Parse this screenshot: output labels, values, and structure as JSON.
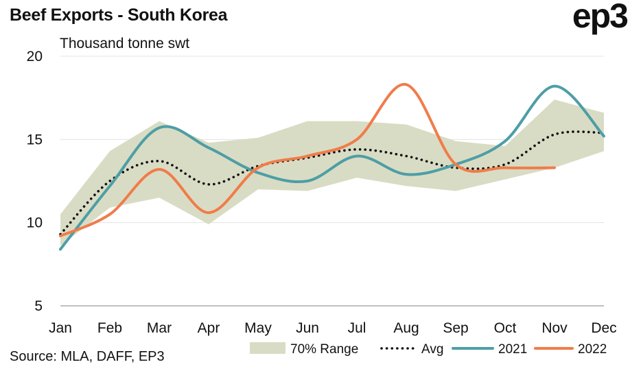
{
  "title": "Beef Exports - South Korea",
  "logo": "ep3",
  "unit_label": "Thousand tonne swt",
  "source": "Source: MLA, DAFF, EP3",
  "colors": {
    "range": "#d9dcc4",
    "avg": "#111111",
    "y2021": "#4d9ea6",
    "y2022": "#f07c4a",
    "grid": "#e3e3e3"
  },
  "chart_data": {
    "type": "line",
    "categories": [
      "Jan",
      "Feb",
      "Mar",
      "Apr",
      "May",
      "Jun",
      "Jul",
      "Aug",
      "Sep",
      "Oct",
      "Nov",
      "Dec"
    ],
    "ylim": [
      5,
      20
    ],
    "yticks": [
      5,
      10,
      15,
      20
    ],
    "grid": true,
    "legend": "bottom",
    "range": {
      "name": "70% Range",
      "low": [
        8.6,
        10.9,
        11.5,
        9.9,
        12.0,
        11.9,
        12.7,
        12.2,
        11.9,
        12.6,
        13.3,
        14.3
      ],
      "high": [
        10.5,
        14.3,
        16.1,
        14.8,
        15.1,
        16.1,
        16.1,
        15.9,
        14.9,
        14.6,
        17.4,
        16.6
      ]
    },
    "series": [
      {
        "name": "Avg",
        "key": "avg",
        "values": [
          9.3,
          12.5,
          13.7,
          12.3,
          13.4,
          13.9,
          14.4,
          14.0,
          13.3,
          13.5,
          15.3,
          15.4
        ]
      },
      {
        "name": "2021",
        "key": "y2021",
        "values": [
          8.4,
          12.2,
          15.7,
          14.5,
          13.0,
          12.5,
          14.0,
          12.9,
          13.5,
          14.9,
          18.2,
          15.2
        ]
      },
      {
        "name": "2022",
        "key": "y2022",
        "values": [
          9.2,
          10.5,
          13.2,
          10.6,
          13.3,
          14.0,
          15.0,
          18.3,
          13.5,
          13.3,
          13.3,
          null
        ]
      }
    ]
  }
}
